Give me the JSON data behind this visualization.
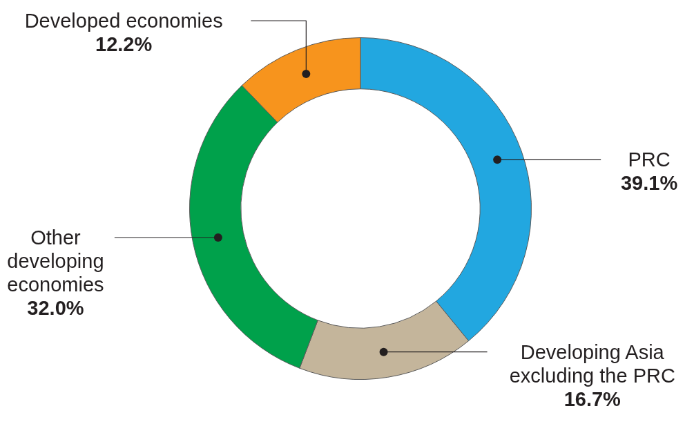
{
  "chart_data": {
    "type": "donut",
    "categories": [
      "PRC",
      "Developing Asia excluding the PRC",
      "Other developing economies",
      "Developed economies"
    ],
    "values": [
      39.1,
      16.7,
      32.0,
      12.2
    ],
    "colors": [
      "#22a7e0",
      "#c4b59b",
      "#00a14b",
      "#f7941d"
    ],
    "value_labels": [
      "39.1%",
      "16.7%",
      "32.0%",
      "12.2%"
    ],
    "legend": false
  }
}
